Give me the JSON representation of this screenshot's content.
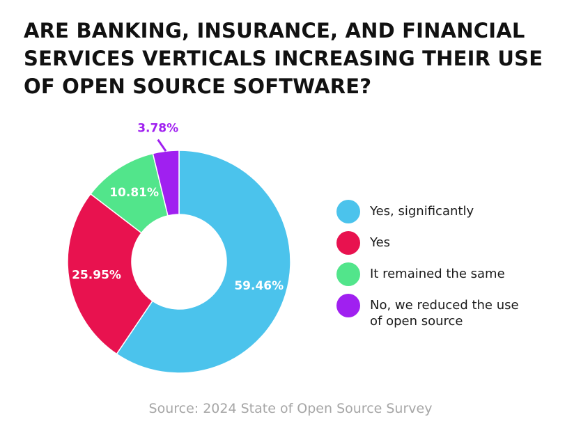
{
  "title_lines": [
    "ARE BANKING, INSURANCE, AND FINANCIAL",
    "SERVICES VERTICALS INCREASING THEIR USE",
    "OF OPEN SOURCE SOFTWARE?"
  ],
  "source": "Source: 2024 State of Open Source Survey",
  "chart_data": {
    "type": "pie",
    "variant": "donut",
    "title": "ARE BANKING, INSURANCE, AND FINANCIAL SERVICES VERTICALS INCREASING THEIR USE OF OPEN SOURCE SOFTWARE?",
    "legend_position": "right",
    "slices": [
      {
        "label": "Yes, significantly",
        "value": 59.46,
        "display": "59.46%",
        "color": "#4BC3EC"
      },
      {
        "label": "Yes",
        "value": 25.95,
        "display": "25.95%",
        "color": "#E8124F"
      },
      {
        "label": "It remained the same",
        "value": 10.81,
        "display": "10.81%",
        "color": "#52E58B"
      },
      {
        "label": "No, we reduced the use of open source",
        "value": 3.78,
        "display": "3.78%",
        "color": "#A020F0"
      }
    ]
  }
}
